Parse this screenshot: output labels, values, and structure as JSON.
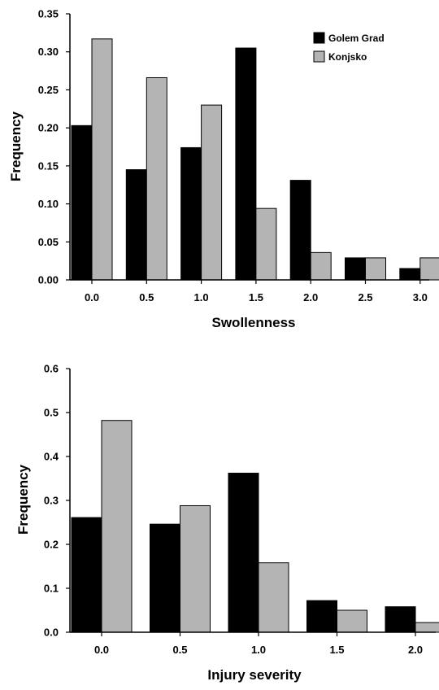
{
  "colors": {
    "golem_grad": "#000000",
    "konjsko": "#b4b4b4",
    "bar_outline": "#000000",
    "background": "#ffffff"
  },
  "chart_data": [
    {
      "type": "bar",
      "xlabel": "Swollenness",
      "ylabel": "Frequency",
      "ylim": [
        0,
        0.35
      ],
      "yticks": [
        "0.00",
        "0.05",
        "0.10",
        "0.15",
        "0.20",
        "0.25",
        "0.30",
        "0.35"
      ],
      "categories": [
        "0.0",
        "0.5",
        "1.0",
        "1.5",
        "2.0",
        "2.5",
        "3.0"
      ],
      "series": [
        {
          "name": "Golem Grad",
          "values": [
            0.203,
            0.145,
            0.174,
            0.305,
            0.131,
            0.029,
            0.015
          ]
        },
        {
          "name": "Konjsko",
          "values": [
            0.317,
            0.266,
            0.23,
            0.094,
            0.036,
            0.029,
            0.029
          ]
        }
      ],
      "legend": "top-right",
      "grid": false
    },
    {
      "type": "bar",
      "xlabel": "Injury severity",
      "ylabel": "Frequency",
      "ylim": [
        0,
        0.6
      ],
      "yticks": [
        "0.0",
        "0.1",
        "0.2",
        "0.3",
        "0.4",
        "0.5",
        "0.6"
      ],
      "categories": [
        "0.0",
        "0.5",
        "1.0",
        "1.5",
        "2.0"
      ],
      "series": [
        {
          "name": "Golem Grad",
          "values": [
            0.261,
            0.246,
            0.362,
            0.072,
            0.058
          ]
        },
        {
          "name": "Konjsko",
          "values": [
            0.482,
            0.288,
            0.158,
            0.05,
            0.022
          ]
        }
      ],
      "grid": false
    }
  ]
}
